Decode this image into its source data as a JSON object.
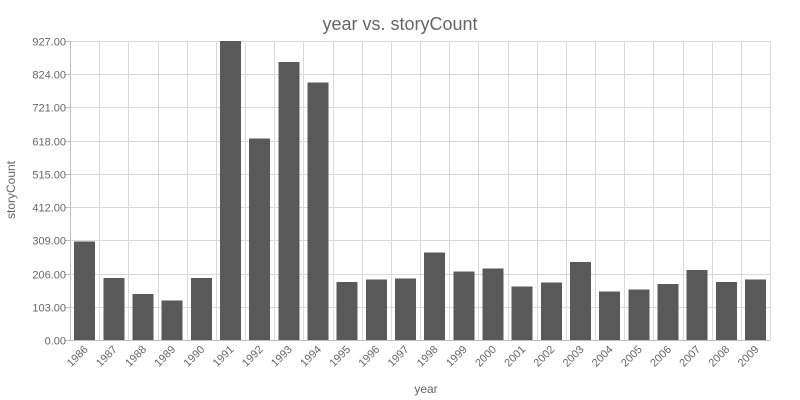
{
  "chart_data": {
    "type": "bar",
    "title": "year vs. storyCount",
    "xlabel": "year",
    "ylabel": "storyCount",
    "categories": [
      "1986",
      "1987",
      "1988",
      "1989",
      "1990",
      "1991",
      "1992",
      "1993",
      "1994",
      "1995",
      "1996",
      "1997",
      "1998",
      "1999",
      "2000",
      "2001",
      "2002",
      "2003",
      "2004",
      "2005",
      "2006",
      "2007",
      "2008",
      "2009"
    ],
    "series": [
      {
        "values": [
          305,
          192,
          142,
          122,
          192,
          931,
          625,
          862,
          798,
          180,
          187,
          190,
          272,
          213,
          221,
          166,
          179,
          242,
          151,
          157,
          174,
          217,
          180,
          187
        ]
      }
    ],
    "ylim": [
      0,
      927
    ],
    "yticks": [
      "0.00",
      "103.00",
      "206.00",
      "309.00",
      "412.00",
      "515.00",
      "618.00",
      "721.00",
      "824.00",
      "927.00"
    ],
    "grid": true,
    "bar_color": "#595959"
  }
}
